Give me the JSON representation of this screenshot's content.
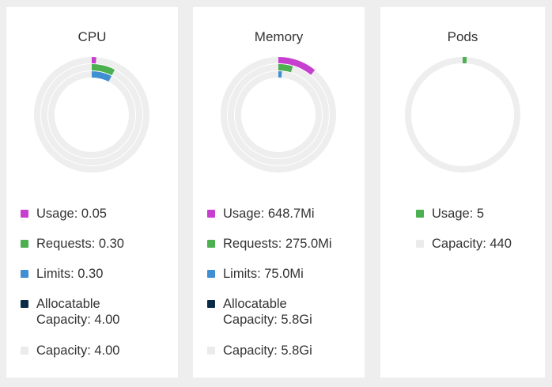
{
  "colors": {
    "usage": "#c73fcf",
    "requests": "#4caf50",
    "limits": "#3f8fd2",
    "allocatable": "#0b2a48",
    "capacity": "#ebebeb",
    "track": "#eeeeee"
  },
  "cpu": {
    "title": "CPU",
    "legend": [
      {
        "label": "Usage: 0.05"
      },
      {
        "label": "Requests: 0.30"
      },
      {
        "label": "Limits: 0.30"
      },
      {
        "label": "Allocatable Capacity: 4.00"
      },
      {
        "label": "Capacity: 4.00"
      }
    ],
    "rings": {
      "usage": 0.0125,
      "requests": 0.075,
      "limits": 0.075
    }
  },
  "memory": {
    "title": "Memory",
    "legend": [
      {
        "label": "Usage: 648.7Mi"
      },
      {
        "label": "Requests: 275.0Mi"
      },
      {
        "label": "Limits: 75.0Mi"
      },
      {
        "label": "Allocatable Capacity: 5.8Gi"
      },
      {
        "label": "Capacity: 5.8Gi"
      }
    ],
    "rings": {
      "usage": 0.109,
      "requests": 0.046,
      "limits": 0.013
    }
  },
  "pods": {
    "title": "Pods",
    "legend": [
      {
        "label": "Usage: 5"
      },
      {
        "label": "Capacity: 440"
      }
    ],
    "rings": {
      "usage": 0.0114
    }
  }
}
